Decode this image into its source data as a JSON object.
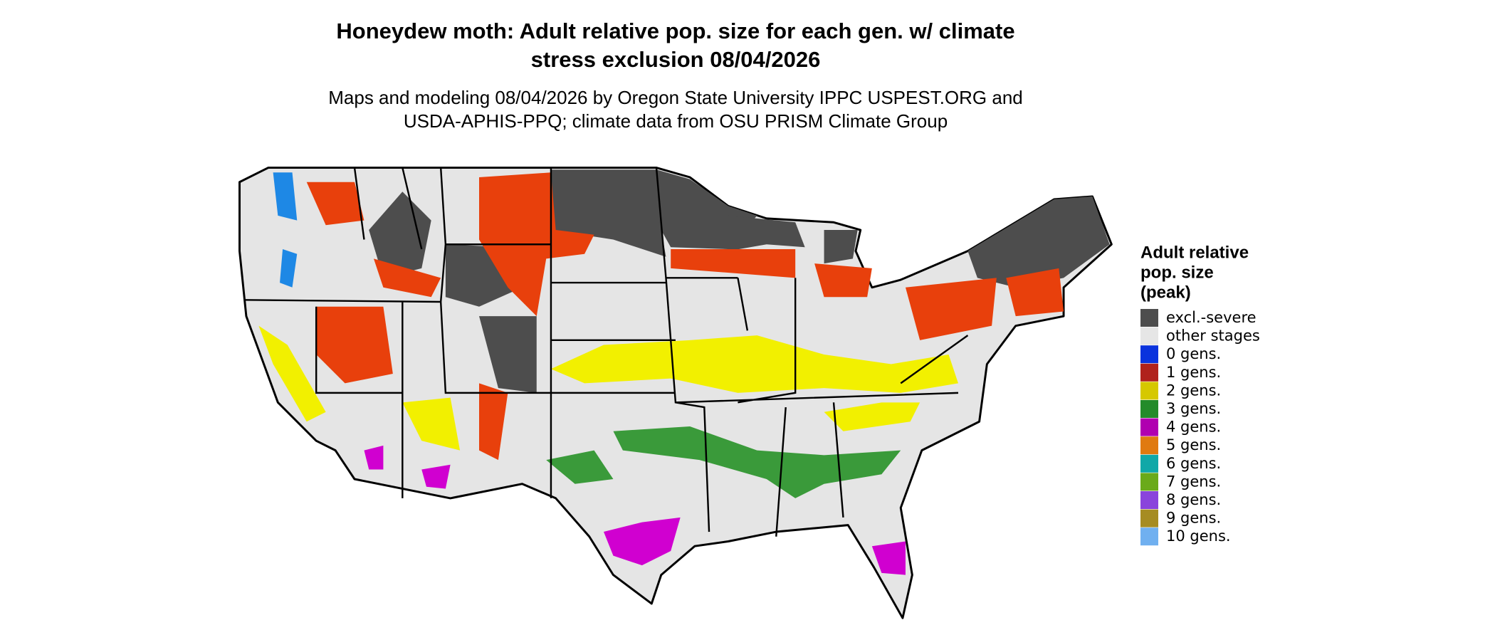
{
  "header": {
    "title": [
      "Honeydew moth: Adult relative pop. size for each gen. w/ climate",
      "stress exclusion 08/04/2026"
    ],
    "subtitle": [
      "Maps and modeling 08/04/2026 by Oregon State University IPPC USPEST.ORG and",
      "USDA-APHIS-PPQ; climate data from OSU PRISM Climate Group"
    ]
  },
  "legend": {
    "title": [
      "Adult relative",
      "pop. size",
      "(peak)"
    ],
    "items": [
      {
        "label": "excl.-severe",
        "color": "#4d4d4d"
      },
      {
        "label": "other stages",
        "color": "#e6e6e6"
      },
      {
        "label": "0 gens.",
        "color": "#0a33dd"
      },
      {
        "label": "1 gens.",
        "color": "#b0221c"
      },
      {
        "label": "2 gens.",
        "color": "#d6c800"
      },
      {
        "label": "3 gens.",
        "color": "#238b2a"
      },
      {
        "label": "4 gens.",
        "color": "#b000b0"
      },
      {
        "label": "5 gens.",
        "color": "#e07a10"
      },
      {
        "label": "6 gens.",
        "color": "#10a8a8"
      },
      {
        "label": "7 gens.",
        "color": "#6aaa1a"
      },
      {
        "label": "8 gens.",
        "color": "#8a44dc"
      },
      {
        "label": "9 gens.",
        "color": "#a68c22"
      },
      {
        "label": "10 gens.",
        "color": "#70b0f0"
      }
    ]
  }
}
